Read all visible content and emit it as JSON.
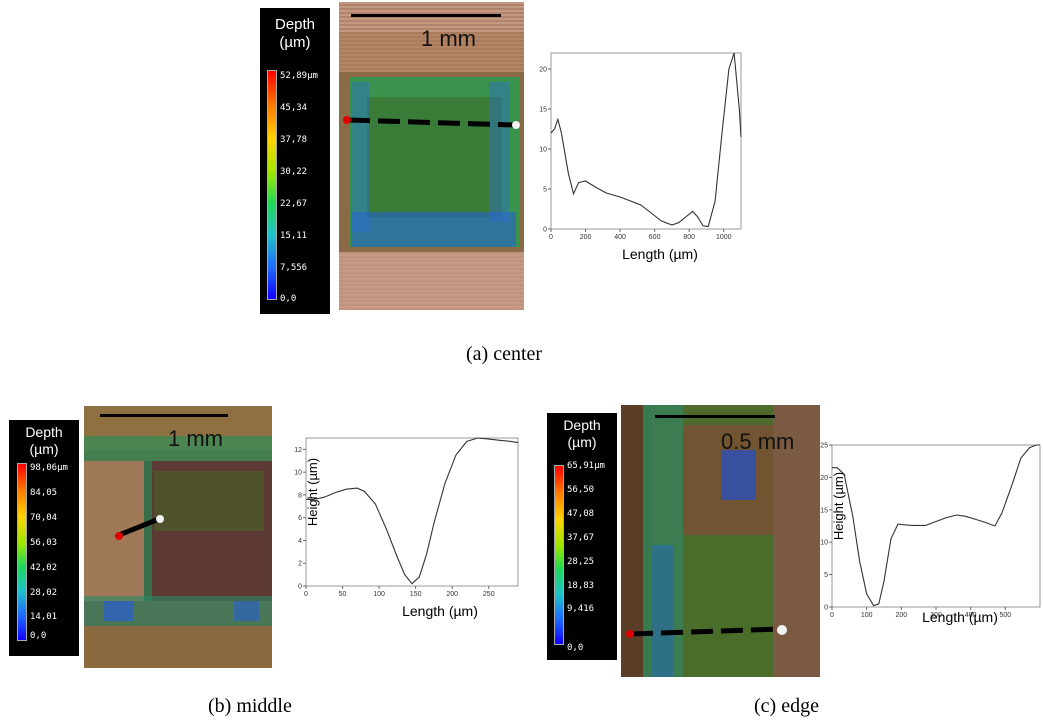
{
  "panels": [
    {
      "caption": "(a)  center",
      "legend": {
        "title": "Depth\n(µm)",
        "ticks": [
          "52,89µm",
          "45,34",
          "37,78",
          "30,22",
          "22,67",
          "15,11",
          "7,556",
          "0,0"
        ]
      },
      "scale_label": "1 mm",
      "plot": {
        "xlabel": "Length (µm)",
        "ylabel": "",
        "xticks": [
          "0",
          "200",
          "400",
          "600",
          "800",
          "1000"
        ],
        "yticks": [
          "0",
          "5",
          "10",
          "15",
          "20"
        ]
      }
    },
    {
      "caption": "(b)  middle",
      "legend": {
        "title": "Depth\n(µm)",
        "ticks": [
          "98,06µm",
          "84,05",
          "70,04",
          "56,03",
          "42,02",
          "28,02",
          "14,01",
          "0,0"
        ]
      },
      "scale_label": "1 mm",
      "plot": {
        "xlabel": "Length (µm)",
        "ylabel": "Height (µm)",
        "xticks": [
          "0",
          "50",
          "100",
          "150",
          "200",
          "250"
        ],
        "yticks": [
          "0",
          "2",
          "4",
          "6",
          "8",
          "10",
          "12"
        ]
      }
    },
    {
      "caption": "(c)  edge",
      "legend": {
        "title": "Depth\n(µm)",
        "ticks": [
          "65,91µm",
          "56,50",
          "47,08",
          "37,67",
          "28,25",
          "18,83",
          "9,416",
          "0,0"
        ]
      },
      "scale_label": "0.5 mm",
      "plot": {
        "xlabel": "Length (µm)",
        "ylabel": "Height (µm)",
        "xticks": [
          "0",
          "100",
          "200",
          "300",
          "400",
          "500"
        ],
        "yticks": [
          "0",
          "5",
          "10",
          "15",
          "20",
          "25"
        ]
      }
    }
  ],
  "chart_data": [
    {
      "type": "line",
      "xlabel": "Length (µm)",
      "ylabel": "",
      "xlim": [
        0,
        1100
      ],
      "ylim": [
        0,
        22
      ],
      "x": [
        0,
        20,
        40,
        60,
        100,
        130,
        160,
        200,
        260,
        320,
        400,
        460,
        520,
        580,
        640,
        700,
        740,
        780,
        820,
        850,
        880,
        910,
        950,
        990,
        1030,
        1060,
        1090,
        1100
      ],
      "y": [
        12,
        12.5,
        13.7,
        12,
        7,
        4.4,
        5.8,
        6,
        5.2,
        4.5,
        4.0,
        3.5,
        3.0,
        2.0,
        1.0,
        0.5,
        0.8,
        1.5,
        2.2,
        1.5,
        0.4,
        0.3,
        3.5,
        12,
        20,
        22,
        15,
        11.5
      ]
    },
    {
      "type": "line",
      "xlabel": "Length (µm)",
      "ylabel": "Height (µm)",
      "xlim": [
        0,
        290
      ],
      "ylim": [
        0,
        13
      ],
      "x": [
        0,
        10,
        25,
        40,
        55,
        70,
        80,
        95,
        110,
        125,
        135,
        145,
        155,
        165,
        175,
        190,
        205,
        220,
        235,
        250,
        265,
        280,
        290
      ],
      "y": [
        7.6,
        7.6,
        7.8,
        8.2,
        8.5,
        8.6,
        8.3,
        7.2,
        5.0,
        2.5,
        1.0,
        0.2,
        0.8,
        2.8,
        5.5,
        9.0,
        11.5,
        12.7,
        13.0,
        12.9,
        12.8,
        12.7,
        12.6
      ]
    },
    {
      "type": "line",
      "xlabel": "Length (µm)",
      "ylabel": "Height (µm)",
      "xlim": [
        0,
        600
      ],
      "ylim": [
        0,
        25
      ],
      "x": [
        0,
        15,
        35,
        60,
        80,
        100,
        120,
        135,
        150,
        170,
        190,
        205,
        230,
        270,
        300,
        330,
        360,
        385,
        410,
        440,
        470,
        490,
        520,
        545,
        570,
        590,
        600
      ],
      "y": [
        21.5,
        21.5,
        20.5,
        14,
        7,
        2,
        0.2,
        0.5,
        4,
        10.5,
        12.8,
        12.7,
        12.6,
        12.6,
        13.2,
        13.8,
        14.2,
        14,
        13.6,
        13.1,
        12.5,
        14.5,
        19,
        23,
        24.6,
        25,
        25
      ]
    }
  ]
}
